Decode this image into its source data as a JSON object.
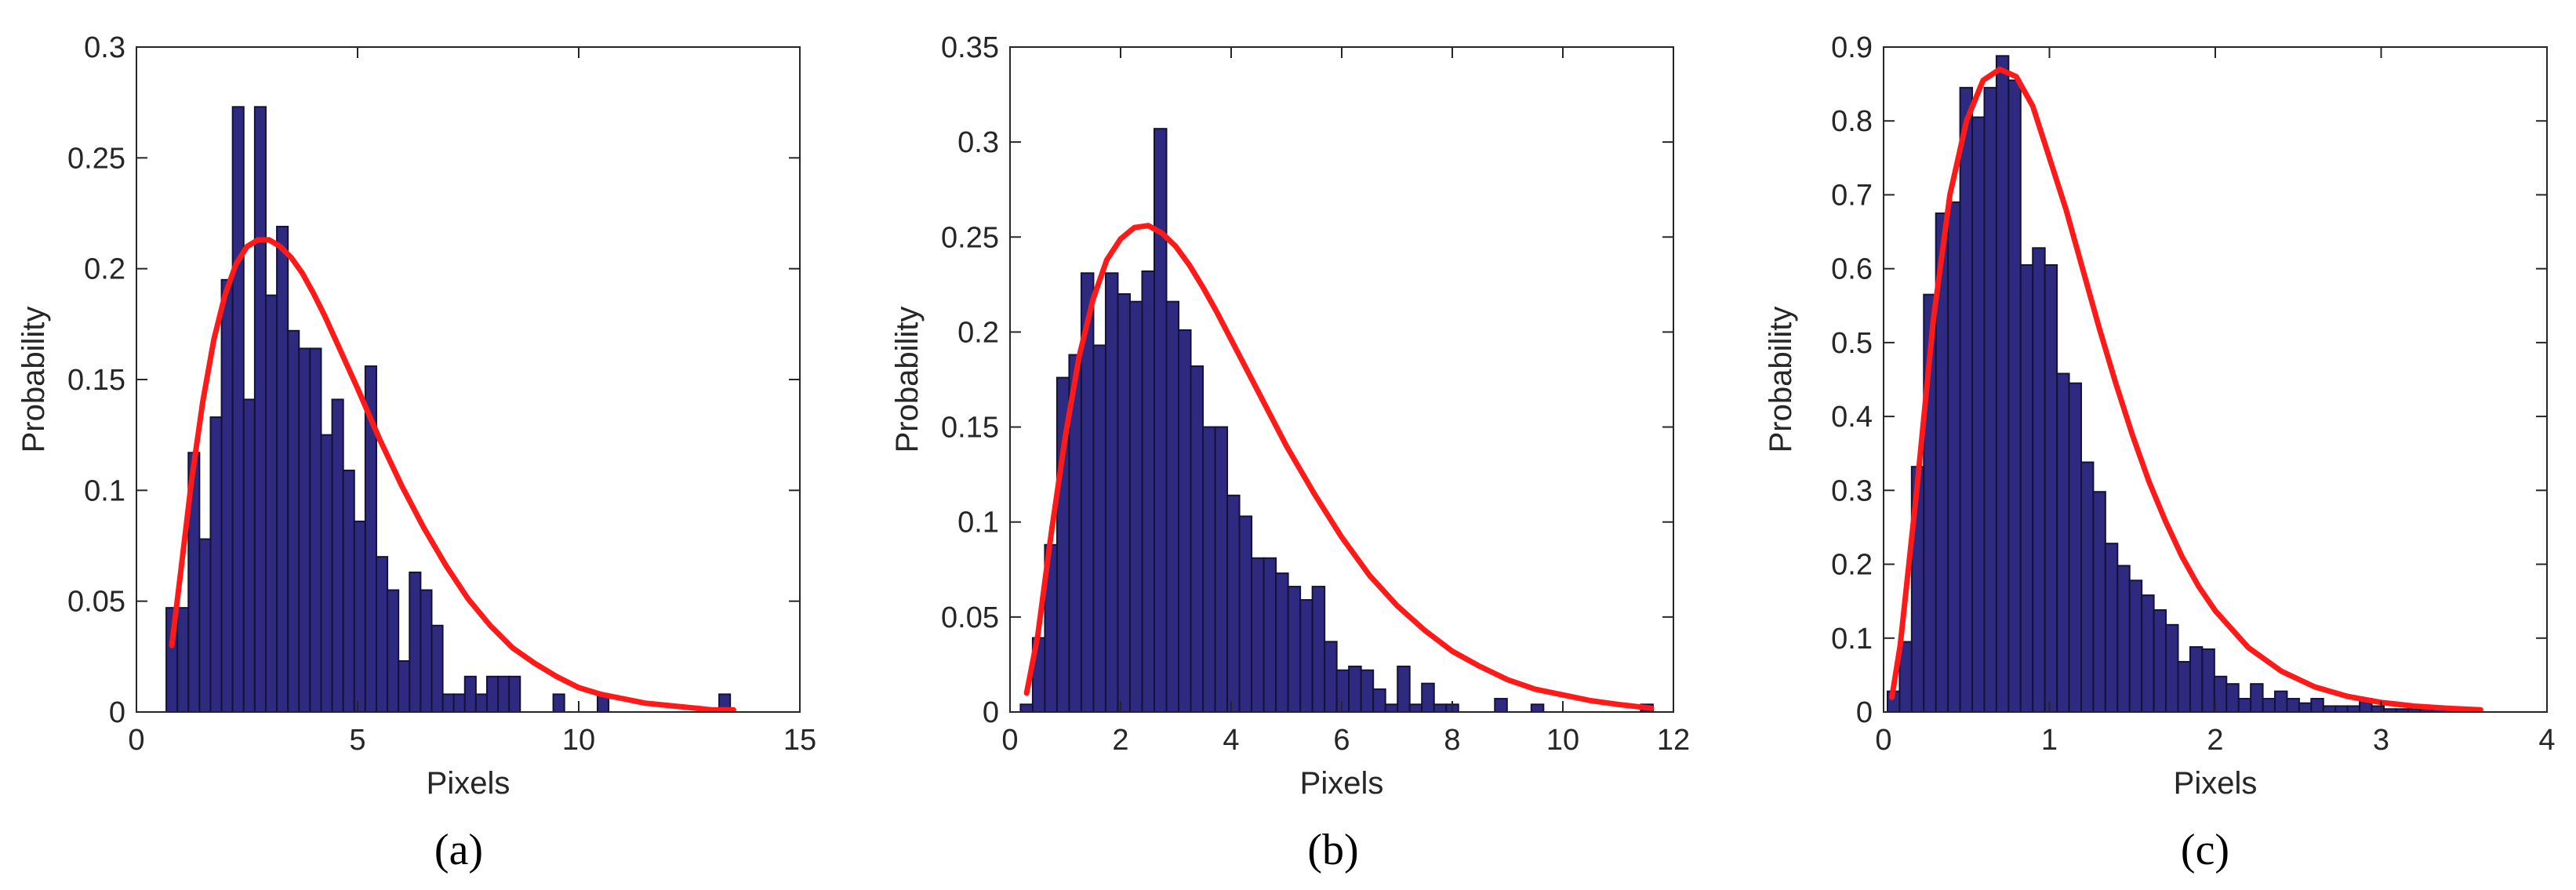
{
  "colors": {
    "bar_fill": "#2E2A80",
    "bar_edge": "#141238",
    "fit_line": "#FF1A1A",
    "axes": "#262626",
    "background": "#FFFFFF"
  },
  "chart_data": [
    {
      "type": "bar",
      "caption": "(a)",
      "xlabel": "Pixels",
      "ylabel": "Probability",
      "xlim": [
        0,
        15
      ],
      "ylim": [
        0,
        0.3
      ],
      "xticks": [
        0,
        5,
        10,
        15
      ],
      "xtick_labels": [
        "0",
        "5",
        "10",
        "15"
      ],
      "yticks": [
        0,
        0.05,
        0.1,
        0.15,
        0.2,
        0.25,
        0.3
      ],
      "ytick_labels": [
        "0",
        "0.05",
        "0.1",
        "0.15",
        "0.2",
        "0.25",
        "0.3"
      ],
      "grid": false,
      "bin_width": 0.25,
      "bin_centers": [
        0.8,
        1.05,
        1.3,
        1.55,
        1.8,
        2.05,
        2.3,
        2.55,
        2.8,
        3.05,
        3.3,
        3.55,
        3.8,
        4.05,
        4.3,
        4.55,
        4.8,
        5.05,
        5.3,
        5.55,
        5.8,
        6.05,
        6.3,
        6.55,
        6.8,
        7.05,
        7.3,
        7.55,
        7.8,
        8.05,
        8.3,
        8.55,
        8.8,
        9.05,
        9.3,
        9.55,
        9.8,
        10.05,
        10.3,
        10.55,
        10.8,
        11.05,
        11.3,
        11.55,
        11.8,
        12.05,
        12.3,
        12.55,
        12.8,
        13.05,
        13.3
      ],
      "values": [
        0.047,
        0.047,
        0.117,
        0.078,
        0.133,
        0.195,
        0.273,
        0.141,
        0.273,
        0.188,
        0.219,
        0.172,
        0.164,
        0.164,
        0.125,
        0.141,
        0.109,
        0.086,
        0.156,
        0.07,
        0.055,
        0.023,
        0.063,
        0.055,
        0.039,
        0.008,
        0.008,
        0.016,
        0.008,
        0.016,
        0.016,
        0.016,
        0,
        0,
        0,
        0.008,
        0,
        0,
        0,
        0.008,
        0,
        0,
        0,
        0,
        0,
        0,
        0,
        0,
        0,
        0,
        0.008
      ],
      "fit": {
        "x": [
          0.8,
          1.0,
          1.25,
          1.5,
          1.75,
          2.0,
          2.25,
          2.5,
          2.75,
          3.0,
          3.25,
          3.5,
          3.75,
          4.0,
          4.25,
          4.5,
          4.75,
          5.0,
          5.5,
          6.0,
          6.5,
          7.0,
          7.5,
          8.0,
          8.5,
          9.0,
          9.5,
          10.0,
          10.5,
          11.0,
          11.5,
          12.0,
          12.5,
          13.0,
          13.5
        ],
        "y": [
          0.03,
          0.063,
          0.105,
          0.14,
          0.168,
          0.188,
          0.202,
          0.21,
          0.213,
          0.213,
          0.21,
          0.205,
          0.198,
          0.189,
          0.179,
          0.168,
          0.157,
          0.146,
          0.123,
          0.102,
          0.083,
          0.066,
          0.051,
          0.039,
          0.029,
          0.022,
          0.016,
          0.011,
          0.008,
          0.006,
          0.004,
          0.003,
          0.002,
          0.001,
          0.001
        ]
      }
    },
    {
      "type": "bar",
      "caption": "(b)",
      "xlabel": "Pixels",
      "ylabel": "Probability",
      "xlim": [
        0,
        12
      ],
      "ylim": [
        0,
        0.35
      ],
      "xticks": [
        0,
        2,
        4,
        6,
        8,
        10,
        12
      ],
      "xtick_labels": [
        "0",
        "2",
        "4",
        "6",
        "8",
        "10",
        "12"
      ],
      "yticks": [
        0,
        0.05,
        0.1,
        0.15,
        0.2,
        0.25,
        0.3,
        0.35
      ],
      "ytick_labels": [
        "0",
        "0.05",
        "0.1",
        "0.15",
        "0.2",
        "0.25",
        "0.3",
        "0.35"
      ],
      "grid": false,
      "bin_width": 0.22,
      "bin_centers": [
        0.3,
        0.52,
        0.74,
        0.96,
        1.18,
        1.4,
        1.62,
        1.84,
        2.06,
        2.28,
        2.5,
        2.72,
        2.94,
        3.16,
        3.38,
        3.6,
        3.82,
        4.04,
        4.26,
        4.48,
        4.7,
        4.92,
        5.14,
        5.36,
        5.58,
        5.8,
        6.02,
        6.24,
        6.46,
        6.68,
        6.9,
        7.12,
        7.34,
        7.56,
        7.78,
        8.0,
        8.22,
        8.44,
        8.66,
        8.88,
        9.1,
        9.32,
        9.54,
        9.76,
        9.98,
        10.2,
        10.42,
        10.64,
        10.86,
        11.08,
        11.3,
        11.52
      ],
      "values": [
        0.004,
        0.039,
        0.088,
        0.176,
        0.188,
        0.231,
        0.193,
        0.231,
        0.22,
        0.216,
        0.232,
        0.307,
        0.216,
        0.201,
        0.182,
        0.15,
        0.15,
        0.114,
        0.103,
        0.081,
        0.081,
        0.073,
        0.066,
        0.059,
        0.066,
        0.037,
        0.022,
        0.024,
        0.022,
        0.012,
        0.004,
        0.024,
        0.004,
        0.015,
        0.004,
        0.004,
        0,
        0,
        0,
        0.007,
        0,
        0,
        0.004,
        0,
        0,
        0,
        0,
        0,
        0,
        0,
        0,
        0.004
      ],
      "fit": {
        "x": [
          0.3,
          0.5,
          0.75,
          1.0,
          1.25,
          1.5,
          1.75,
          2.0,
          2.25,
          2.5,
          2.75,
          3.0,
          3.25,
          3.5,
          3.75,
          4.0,
          4.5,
          5.0,
          5.5,
          6.0,
          6.5,
          7.0,
          7.5,
          8.0,
          8.5,
          9.0,
          9.5,
          10.0,
          10.5,
          11.0,
          11.6
        ],
        "y": [
          0.01,
          0.04,
          0.095,
          0.145,
          0.187,
          0.217,
          0.238,
          0.249,
          0.255,
          0.256,
          0.252,
          0.245,
          0.235,
          0.223,
          0.21,
          0.196,
          0.168,
          0.14,
          0.115,
          0.092,
          0.072,
          0.056,
          0.043,
          0.032,
          0.024,
          0.017,
          0.012,
          0.009,
          0.006,
          0.004,
          0.002
        ]
      }
    },
    {
      "type": "bar",
      "caption": "(c)",
      "xlabel": "Pixels",
      "ylabel": "Probability",
      "xlim": [
        0,
        4
      ],
      "ylim": [
        0,
        0.9
      ],
      "xticks": [
        0,
        1,
        2,
        3,
        4
      ],
      "xtick_labels": [
        "0",
        "1",
        "2",
        "3",
        "4"
      ],
      "yticks": [
        0,
        0.1,
        0.2,
        0.3,
        0.4,
        0.5,
        0.6,
        0.7,
        0.8,
        0.9
      ],
      "ytick_labels": [
        "0",
        "0.1",
        "0.2",
        "0.3",
        "0.4",
        "0.5",
        "0.6",
        "0.7",
        "0.8",
        "0.9"
      ],
      "grid": false,
      "bin_width": 0.073,
      "bin_centers": [
        0.06,
        0.133,
        0.206,
        0.279,
        0.352,
        0.425,
        0.498,
        0.571,
        0.644,
        0.717,
        0.79,
        0.863,
        0.936,
        1.009,
        1.082,
        1.155,
        1.228,
        1.301,
        1.374,
        1.447,
        1.52,
        1.593,
        1.666,
        1.739,
        1.812,
        1.885,
        1.958,
        2.031,
        2.104,
        2.177,
        2.25,
        2.323,
        2.396,
        2.469,
        2.542,
        2.615,
        2.688,
        2.761,
        2.834,
        2.907,
        2.98,
        3.053,
        3.126,
        3.199,
        3.272,
        3.345,
        3.418,
        3.491,
        3.564
      ],
      "values": [
        0.028,
        0.095,
        0.332,
        0.565,
        0.675,
        0.69,
        0.845,
        0.805,
        0.845,
        0.888,
        0.855,
        0.605,
        0.628,
        0.605,
        0.458,
        0.445,
        0.338,
        0.298,
        0.228,
        0.198,
        0.178,
        0.158,
        0.138,
        0.118,
        0.068,
        0.088,
        0.085,
        0.048,
        0.038,
        0.018,
        0.038,
        0.018,
        0.028,
        0.018,
        0.012,
        0.018,
        0.008,
        0.008,
        0.008,
        0.018,
        0.008,
        0.004,
        0.004,
        0.004,
        0.004,
        0.004,
        0.004,
        0.004,
        0.004
      ],
      "fit": {
        "x": [
          0.05,
          0.1,
          0.2,
          0.3,
          0.4,
          0.5,
          0.6,
          0.7,
          0.8,
          0.9,
          1.0,
          1.1,
          1.2,
          1.3,
          1.4,
          1.5,
          1.6,
          1.7,
          1.8,
          1.9,
          2.0,
          2.2,
          2.4,
          2.6,
          2.8,
          3.0,
          3.2,
          3.4,
          3.6
        ],
        "y": [
          0.02,
          0.09,
          0.3,
          0.53,
          0.7,
          0.8,
          0.855,
          0.87,
          0.86,
          0.82,
          0.75,
          0.68,
          0.6,
          0.52,
          0.445,
          0.375,
          0.312,
          0.258,
          0.21,
          0.17,
          0.137,
          0.087,
          0.055,
          0.034,
          0.021,
          0.013,
          0.008,
          0.005,
          0.003
        ]
      }
    }
  ]
}
